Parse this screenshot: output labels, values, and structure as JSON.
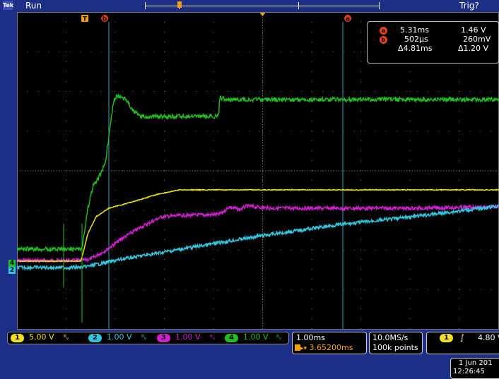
{
  "status": {
    "badge": "Tek",
    "state": "Run",
    "trigger_status": "Trig?"
  },
  "markers": {
    "t_marker": "T",
    "cursor_a": "a",
    "cursor_b": "b"
  },
  "cursor_readout": {
    "a_time": "5.31ms",
    "a_volt": "1.46 V",
    "b_time": "502µs",
    "b_volt": "260mV",
    "delta_time": "Δ4.81ms",
    "delta_volt": "Δ1.20 V"
  },
  "channels": [
    {
      "num": "1",
      "scale": "5.00 V",
      "color": "#f0e020"
    },
    {
      "num": "2",
      "scale": "1.00 V",
      "color": "#30c8e0"
    },
    {
      "num": "3",
      "scale": "1.00 V",
      "color": "#d020d0"
    },
    {
      "num": "4",
      "scale": "1.00 V",
      "color": "#20c020"
    }
  ],
  "channel_bw_symbol": "ᴮᵥ",
  "timebase": {
    "scale": "1.00ms",
    "position": "3.65200ms"
  },
  "acquisition": {
    "rate": "10.0MS/s",
    "points": "100k points"
  },
  "trigger": {
    "channel": "1",
    "slope_symbol": "∫",
    "level": "4.80 V"
  },
  "datetime": {
    "date": "1 Jun 201",
    "time": "12:26:45"
  },
  "left_markers": {
    "ch4": "4",
    "ch2": "2"
  },
  "colors": {
    "background": "#1c2e86",
    "grid": "#888888",
    "cursor": "#30a8c0",
    "orange": "#f6a000"
  }
}
